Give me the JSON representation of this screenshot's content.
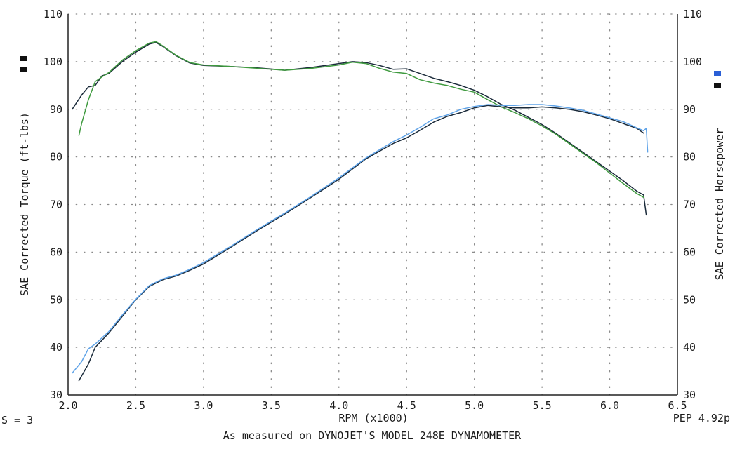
{
  "chart_data": {
    "type": "line",
    "xlabel": "RPM (x1000)",
    "ylabel_left": "SAE Corrected Torque (ft-lbs)",
    "ylabel_right": "SAE Corrected Horsepower",
    "xlim": [
      2.0,
      6.5
    ],
    "ylim_left": [
      30,
      110
    ],
    "ylim_right": [
      30,
      110
    ],
    "x_ticks": [
      "2.0",
      "2.5",
      "3.0",
      "3.5",
      "4.0",
      "4.5",
      "5.0",
      "5.5",
      "6.0",
      "6.5"
    ],
    "y_ticks_left": [
      "30",
      "40",
      "50",
      "60",
      "70",
      "80",
      "90",
      "100",
      "110"
    ],
    "y_ticks_right": [
      "30",
      "40",
      "50",
      "60",
      "70",
      "80",
      "90",
      "100",
      "110"
    ],
    "grid": true,
    "legend": {
      "torque_color": "#111111",
      "hp_color_1": "#2a5fd6",
      "hp_color_2": "#111111"
    },
    "footer_left": "S = 3",
    "footer_right": "PEP 4.92p",
    "caption": "As measured on DYNOJET'S MODEL 248E DYNAMOMETER",
    "series": [
      {
        "axis": "left",
        "color": "#1a2a3a",
        "x": [
          2.03,
          2.1,
          2.15,
          2.2,
          2.25,
          2.3,
          2.4,
          2.5,
          2.6,
          2.65,
          2.7,
          2.8,
          2.9,
          3.0,
          3.2,
          3.4,
          3.6,
          3.8,
          4.0,
          4.1,
          4.2,
          4.3,
          4.4,
          4.5,
          4.6,
          4.7,
          4.8,
          4.9,
          5.0,
          5.1,
          5.2,
          5.3,
          5.4,
          5.5,
          5.6,
          5.7,
          5.8,
          5.9,
          6.0,
          6.1,
          6.2,
          6.25,
          6.27
        ],
        "values": [
          90,
          93,
          94.7,
          95,
          97,
          97.5,
          100,
          102,
          103.7,
          104,
          103.2,
          101.2,
          99.7,
          99.2,
          99,
          98.7,
          98.2,
          98.8,
          99.6,
          100,
          99.8,
          99.2,
          98.4,
          98.5,
          97.5,
          96.5,
          95.8,
          95,
          94,
          92.6,
          91,
          89.8,
          88.3,
          86.8,
          85,
          83,
          81,
          79,
          77,
          75,
          72.8,
          72,
          67.8
        ]
      },
      {
        "axis": "left",
        "color": "#3f9a3f",
        "x": [
          2.08,
          2.1,
          2.15,
          2.2,
          2.25,
          2.3,
          2.4,
          2.5,
          2.6,
          2.65,
          2.7,
          2.8,
          2.9,
          3.0,
          3.2,
          3.4,
          3.6,
          3.8,
          4.0,
          4.1,
          4.2,
          4.3,
          4.4,
          4.5,
          4.6,
          4.7,
          4.8,
          4.9,
          5.0,
          5.1,
          5.2,
          5.3,
          5.4,
          5.5,
          5.6,
          5.7,
          5.8,
          5.9,
          6.0,
          6.1,
          6.2,
          6.25
        ],
        "values": [
          84.5,
          87,
          92,
          95.8,
          96.8,
          97.7,
          100.3,
          102.3,
          103.9,
          104.2,
          103.3,
          101.3,
          99.8,
          99.3,
          99,
          98.6,
          98.2,
          98.6,
          99.3,
          99.9,
          99.6,
          98.6,
          97.8,
          97.5,
          96.2,
          95.5,
          95,
          94.2,
          93.6,
          92,
          90.5,
          89.3,
          88,
          86.5,
          84.8,
          82.8,
          80.8,
          78.8,
          76.6,
          74.4,
          72.3,
          71.5
        ]
      },
      {
        "axis": "right",
        "color": "#1a2a3a",
        "x": [
          2.08,
          2.15,
          2.2,
          2.3,
          2.4,
          2.5,
          2.6,
          2.7,
          2.8,
          2.9,
          3.0,
          3.2,
          3.4,
          3.6,
          3.8,
          4.0,
          4.2,
          4.4,
          4.5,
          4.6,
          4.7,
          4.8,
          4.9,
          5.0,
          5.1,
          5.2,
          5.3,
          5.4,
          5.5,
          5.6,
          5.7,
          5.8,
          5.9,
          6.0,
          6.1,
          6.2,
          6.25
        ],
        "values": [
          33,
          36.5,
          40,
          43,
          46.5,
          50,
          52.8,
          54.2,
          55,
          56.2,
          57.5,
          61,
          64.6,
          68,
          71.6,
          75.3,
          79.6,
          82.8,
          84,
          85.6,
          87.3,
          88.5,
          89.3,
          90.3,
          90.8,
          90.5,
          90.3,
          90.3,
          90.5,
          90.3,
          90,
          89.5,
          88.8,
          88,
          87,
          86,
          85
        ]
      },
      {
        "axis": "right",
        "color": "#5fa3e8",
        "x": [
          2.03,
          2.1,
          2.15,
          2.2,
          2.3,
          2.4,
          2.5,
          2.6,
          2.7,
          2.8,
          2.9,
          3.0,
          3.2,
          3.4,
          3.6,
          3.8,
          4.0,
          4.2,
          4.4,
          4.5,
          4.6,
          4.7,
          4.8,
          4.9,
          5.0,
          5.1,
          5.2,
          5.3,
          5.4,
          5.5,
          5.6,
          5.7,
          5.8,
          5.9,
          6.0,
          6.1,
          6.2,
          6.25,
          6.27,
          6.28
        ],
        "values": [
          34.6,
          37,
          39.7,
          40.7,
          43.3,
          46.8,
          50.1,
          53,
          54.4,
          55.2,
          56.4,
          57.8,
          61.2,
          64.8,
          68.2,
          71.8,
          75.6,
          79.8,
          83.2,
          84.6,
          86.2,
          88,
          88.8,
          90,
          90.6,
          91,
          90.8,
          90.8,
          91,
          91,
          90.7,
          90.3,
          89.8,
          89,
          88.2,
          87.4,
          86.1,
          85.5,
          86,
          81
        ]
      }
    ]
  }
}
